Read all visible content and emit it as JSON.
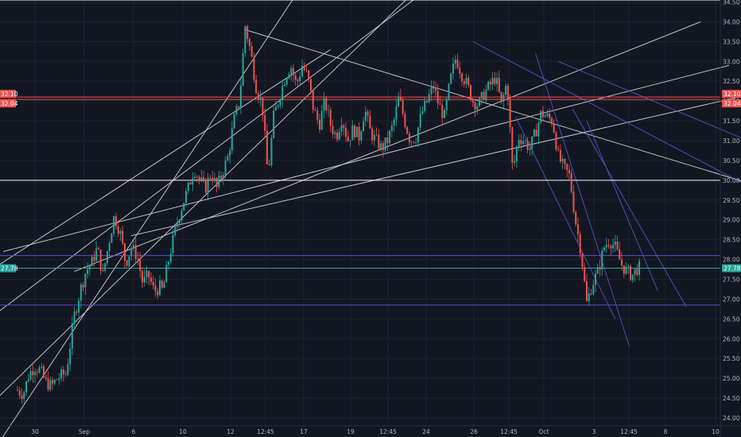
{
  "colors": {
    "background": "#131722",
    "grid": "#1f2330",
    "up": "#26a69a",
    "down": "#ef5350",
    "trendline": "#d1d4dc",
    "trendline_purple": "#5b4fc4",
    "last_price": "#26a69a",
    "resistance": "#ef5350",
    "horizontal": "#ffffff"
  },
  "chart_data": {
    "type": "candlestick",
    "ylim": [
      23.8,
      34.55
    ],
    "y_ticks": [
      "24.00",
      "24.50",
      "25.00",
      "25.50",
      "26.00",
      "26.50",
      "27.00",
      "27.50",
      "28.00",
      "28.50",
      "29.00",
      "29.50",
      "30.00",
      "30.50",
      "31.00",
      "31.50",
      "32.00",
      "32.50",
      "33.00",
      "33.50",
      "34.00",
      "34.50"
    ],
    "x_ticks": [
      "30",
      "Sep",
      "6",
      "10",
      "12",
      "12:45",
      "17",
      "19",
      "12:45",
      "24",
      "26",
      "12:45",
      "Oct",
      "3",
      "12:45",
      "8",
      "10"
    ],
    "price_labels": [
      {
        "text": "32.10",
        "value": 32.1,
        "color": "#ef5350"
      },
      {
        "text": "32.04",
        "value": 32.04,
        "color": "#ef5350"
      },
      {
        "text": "27.78",
        "value": 27.78,
        "color": "#26a69a"
      }
    ],
    "horizontal_lines": [
      {
        "value": 34.55,
        "color": "#ffffff"
      },
      {
        "value": 32.1,
        "color": "#ef5350"
      },
      {
        "value": 32.04,
        "color": "#ef5350"
      },
      {
        "value": 30.0,
        "color": "#ffffff"
      },
      {
        "value": 28.1,
        "color": "#5b4fc4"
      },
      {
        "value": 27.78,
        "color": "#26a69a"
      },
      {
        "value": 26.85,
        "color": "#5b4fc4"
      }
    ],
    "price_path": [
      [
        0,
        24.7
      ],
      [
        2,
        24.6
      ],
      [
        4,
        25.1
      ],
      [
        6,
        25.3
      ],
      [
        8,
        25.2
      ],
      [
        10,
        24.9
      ],
      [
        12,
        24.8
      ],
      [
        14,
        25.0
      ],
      [
        16,
        25.1
      ],
      [
        17,
        25.1
      ],
      [
        18,
        25.6
      ],
      [
        20,
        26.6
      ],
      [
        22,
        27.2
      ],
      [
        24,
        27.7
      ],
      [
        26,
        27.9
      ],
      [
        28,
        28.3
      ],
      [
        30,
        27.6
      ],
      [
        32,
        28.4
      ],
      [
        34,
        29.1
      ],
      [
        36,
        28.7
      ],
      [
        38,
        27.9
      ],
      [
        40,
        28.3
      ],
      [
        42,
        28.1
      ],
      [
        44,
        27.4
      ],
      [
        46,
        27.6
      ],
      [
        48,
        27.2
      ],
      [
        50,
        27.3
      ],
      [
        51,
        27.2
      ],
      [
        52,
        27.6
      ],
      [
        54,
        28.3
      ],
      [
        56,
        28.9
      ],
      [
        58,
        29.4
      ],
      [
        60,
        29.8
      ],
      [
        62,
        30.3
      ],
      [
        64,
        30.0
      ],
      [
        66,
        29.8
      ],
      [
        68,
        30.2
      ],
      [
        70,
        29.8
      ],
      [
        72,
        30.2
      ],
      [
        74,
        30.6
      ],
      [
        76,
        31.5
      ],
      [
        78,
        32.0
      ],
      [
        80,
        33.9
      ],
      [
        82,
        33.2
      ],
      [
        84,
        32.3
      ],
      [
        86,
        31.9
      ],
      [
        88,
        30.1
      ],
      [
        90,
        31.6
      ],
      [
        92,
        32.1
      ],
      [
        94,
        32.6
      ],
      [
        96,
        32.9
      ],
      [
        98,
        32.4
      ],
      [
        100,
        32.9
      ],
      [
        102,
        32.6
      ],
      [
        104,
        31.8
      ],
      [
        106,
        31.4
      ],
      [
        108,
        32.0
      ],
      [
        110,
        31.4
      ],
      [
        112,
        31.1
      ],
      [
        114,
        31.6
      ],
      [
        116,
        31.0
      ],
      [
        118,
        31.3
      ],
      [
        120,
        31.1
      ],
      [
        122,
        31.8
      ],
      [
        124,
        31.2
      ],
      [
        126,
        31.0
      ],
      [
        128,
        30.8
      ],
      [
        130,
        31.0
      ],
      [
        132,
        31.4
      ],
      [
        134,
        32.1
      ],
      [
        136,
        31.5
      ],
      [
        138,
        31.0
      ],
      [
        140,
        31.1
      ],
      [
        142,
        31.7
      ],
      [
        144,
        32.0
      ],
      [
        146,
        32.4
      ],
      [
        148,
        31.9
      ],
      [
        150,
        31.6
      ],
      [
        152,
        32.5
      ],
      [
        154,
        33.1
      ],
      [
        156,
        32.7
      ],
      [
        158,
        32.4
      ],
      [
        160,
        32.0
      ],
      [
        162,
        31.9
      ],
      [
        164,
        32.2
      ],
      [
        166,
        32.4
      ],
      [
        168,
        32.6
      ],
      [
        170,
        31.9
      ],
      [
        172,
        32.5
      ],
      [
        174,
        30.2
      ],
      [
        176,
        31.1
      ],
      [
        178,
        31.0
      ],
      [
        180,
        30.8
      ],
      [
        182,
        31.2
      ],
      [
        184,
        31.7
      ],
      [
        186,
        31.6
      ],
      [
        188,
        31.5
      ],
      [
        190,
        30.6
      ],
      [
        192,
        30.3
      ],
      [
        194,
        30.1
      ],
      [
        196,
        29.0
      ],
      [
        198,
        28.2
      ],
      [
        200,
        26.9
      ],
      [
        202,
        27.4
      ],
      [
        204,
        27.7
      ],
      [
        206,
        28.3
      ],
      [
        208,
        28.5
      ],
      [
        210,
        28.3
      ],
      [
        212,
        27.9
      ],
      [
        214,
        27.7
      ],
      [
        216,
        27.6
      ],
      [
        218,
        27.8
      ],
      [
        219,
        27.78
      ]
    ],
    "x_max": 276,
    "trendlines": [
      {
        "p1": [
          -10,
          23.0
        ],
        "p2": [
          110,
          36.0
        ],
        "color": "#d1d4dc"
      },
      {
        "p1": [
          -10,
          24.3
        ],
        "p2": [
          150,
          35.5
        ],
        "color": "#d1d4dc"
      },
      {
        "p1": [
          -10,
          26.5
        ],
        "p2": [
          140,
          34.6
        ],
        "color": "#d1d4dc"
      },
      {
        "p1": [
          -10,
          27.7
        ],
        "p2": [
          110,
          33.3
        ],
        "color": "#d1d4dc"
      },
      {
        "p1": [
          20,
          27.7
        ],
        "p2": [
          240,
          34.0
        ],
        "color": "#d1d4dc"
      },
      {
        "p1": [
          -5,
          28.2
        ],
        "p2": [
          250,
          32.9
        ],
        "color": "#d1d4dc"
      },
      {
        "p1": [
          40,
          28.6
        ],
        "p2": [
          290,
          32.7
        ],
        "color": "#d1d4dc"
      },
      {
        "p1": [
          80,
          33.8
        ],
        "p2": [
          290,
          29.2
        ],
        "color": "#d1d4dc"
      },
      {
        "p1": [
          160,
          33.5
        ],
        "p2": [
          290,
          28.6
        ],
        "color": "#5b4fc4"
      },
      {
        "p1": [
          190,
          33.0
        ],
        "p2": [
          290,
          30.0
        ],
        "color": "#5b4fc4"
      },
      {
        "p1": [
          175,
          31.6
        ],
        "p2": [
          210,
          26.5
        ],
        "color": "#5b4fc4"
      },
      {
        "p1": [
          182,
          33.2
        ],
        "p2": [
          215,
          25.8
        ],
        "color": "#5b4fc4"
      },
      {
        "p1": [
          195,
          31.8
        ],
        "p2": [
          235,
          26.8
        ],
        "color": "#5b4fc4"
      },
      {
        "p1": [
          200,
          31.5
        ],
        "p2": [
          225,
          27.2
        ],
        "color": "#5b4fc4"
      }
    ]
  }
}
